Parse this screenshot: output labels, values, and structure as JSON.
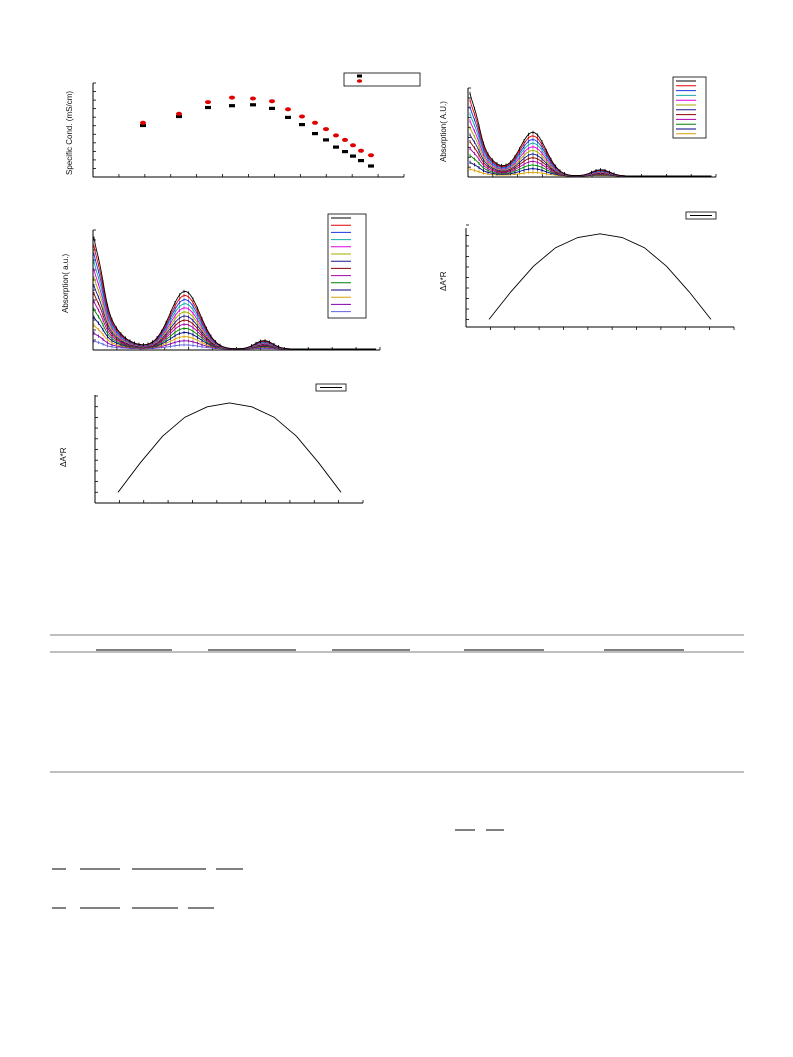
{
  "figure": {
    "panels": [
      {
        "id": "conductivity",
        "ylabel": "Specific Cond. (mS/cm)"
      },
      {
        "id": "absorption-top-right",
        "ylabel": "Absorption( A.U.)"
      },
      {
        "id": "absorption-middle-left",
        "ylabel": "Absorption( a.u.)"
      },
      {
        "id": "job-plot-middle-right",
        "ylabel": "ΔA*R"
      },
      {
        "id": "job-plot-bottom-left",
        "ylabel": "ΔA*R"
      }
    ]
  },
  "colors": {
    "series_black": "#000000",
    "series_red": "#e00000",
    "spectra": [
      "#000000",
      "#e00000",
      "#1a35e0",
      "#17a8a8",
      "#e000e0",
      "#a8a800",
      "#1a1a8c",
      "#8c0000",
      "#a800a8",
      "#008000",
      "#000080",
      "#d8a000",
      "#8000a8",
      "#6060e0"
    ]
  },
  "chart_data": [
    {
      "type": "scatter",
      "ylabel": "Specific Cond. (mS/cm)",
      "series": [
        {
          "values": [
            0.55,
            0.65,
            0.75,
            0.77,
            0.78,
            0.74,
            0.64,
            0.56,
            0.46,
            0.39,
            0.31,
            0.26,
            0.21,
            0.16,
            0.1
          ]
        },
        {
          "values": [
            0.58,
            0.68,
            0.81,
            0.86,
            0.85,
            0.82,
            0.73,
            0.65,
            0.58,
            0.51,
            0.44,
            0.39,
            0.33,
            0.27,
            0.22
          ]
        }
      ]
    },
    {
      "type": "line",
      "ylabel": "Absorption( A.U.)",
      "curves": 12
    },
    {
      "type": "line",
      "ylabel": "Absorption( a.u.)",
      "curves": 14
    },
    {
      "type": "line",
      "ylabel": "ΔA*R",
      "values": [
        0.05,
        0.35,
        0.62,
        0.82,
        0.93,
        0.97,
        0.93,
        0.82,
        0.62,
        0.35,
        0.05
      ]
    },
    {
      "type": "line",
      "ylabel": "ΔA*R",
      "values": [
        0.05,
        0.36,
        0.64,
        0.84,
        0.95,
        0.99,
        0.95,
        0.84,
        0.64,
        0.36,
        0.05
      ]
    }
  ]
}
